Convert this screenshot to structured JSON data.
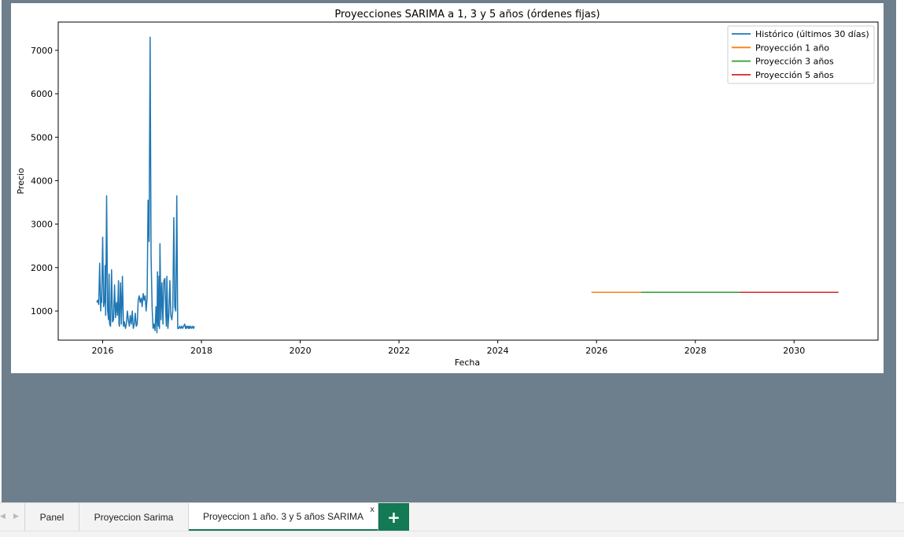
{
  "workbook": {
    "sheet_tabs": [
      {
        "label": "Panel",
        "active": false
      },
      {
        "label": "Proyeccion Sarima",
        "active": false
      },
      {
        "label": "Proyeccion 1 año. 3 y 5 años SARIMA",
        "active": true
      }
    ],
    "close_glyph": "x",
    "add_glyph": "+",
    "nav_left_icon": "chevron-left-icon",
    "nav_right_icon": "chevron-right-icon",
    "accent_color": "#137a55",
    "canvas_color": "#6d7e8c"
  },
  "chart_data": {
    "type": "line",
    "title": "Proyecciones SARIMA a 1, 3 y 5 años (órdenes fijas)",
    "xlabel": "Fecha",
    "ylabel": "Precio",
    "xlim": [
      2015.1,
      2031.7
    ],
    "ylim": [
      330,
      7650
    ],
    "x_ticks": [
      2016,
      2018,
      2020,
      2022,
      2024,
      2026,
      2028,
      2030
    ],
    "y_ticks": [
      1000,
      2000,
      3000,
      4000,
      5000,
      6000,
      7000
    ],
    "legend_position": "top-right",
    "grid": false,
    "series": [
      {
        "name": "Histórico (últimos 30 días)",
        "color": "#1f77b4",
        "x": [
          2015.88,
          2015.9,
          2015.92,
          2015.94,
          2015.96,
          2015.97,
          2015.98,
          2016.0,
          2016.02,
          2016.04,
          2016.05,
          2016.06,
          2016.08,
          2016.1,
          2016.12,
          2016.13,
          2016.14,
          2016.16,
          2016.18,
          2016.2,
          2016.22,
          2016.24,
          2016.26,
          2016.28,
          2016.3,
          2016.32,
          2016.33,
          2016.34,
          2016.36,
          2016.38,
          2016.4,
          2016.42,
          2016.44,
          2016.46,
          2016.48,
          2016.5,
          2016.52,
          2016.54,
          2016.56,
          2016.58,
          2016.6,
          2016.62,
          2016.64,
          2016.66,
          2016.68,
          2016.7,
          2016.72,
          2016.74,
          2016.76,
          2016.78,
          2016.8,
          2016.82,
          2016.84,
          2016.86,
          2016.88,
          2016.9,
          2016.92,
          2016.94,
          2016.96,
          2016.98,
          2017.0,
          2017.02,
          2017.04,
          2017.06,
          2017.08,
          2017.1,
          2017.11,
          2017.12,
          2017.13,
          2017.14,
          2017.15,
          2017.16,
          2017.18,
          2017.2,
          2017.22,
          2017.24,
          2017.26,
          2017.28,
          2017.29,
          2017.3,
          2017.32,
          2017.34,
          2017.36,
          2017.38,
          2017.4,
          2017.42,
          2017.44,
          2017.46,
          2017.48,
          2017.5,
          2017.52,
          2017.54,
          2017.56,
          2017.58,
          2017.6,
          2017.62,
          2017.64,
          2017.66,
          2017.68,
          2017.69,
          2017.7,
          2017.72,
          2017.74,
          2017.75,
          2017.76,
          2017.78,
          2017.8,
          2017.82,
          2017.84,
          2017.86
        ],
        "y": [
          1200,
          1250,
          1150,
          2100,
          1000,
          1300,
          1200,
          2700,
          1100,
          1250,
          2050,
          900,
          3650,
          1000,
          800,
          1850,
          700,
          650,
          1950,
          750,
          800,
          1600,
          850,
          1200,
          900,
          1700,
          700,
          650,
          1650,
          700,
          1800,
          650,
          750,
          600,
          700,
          1000,
          800,
          650,
          900,
          700,
          1000,
          600,
          700,
          950,
          650,
          700,
          1250,
          1350,
          1200,
          1300,
          1100,
          1400,
          1250,
          1350,
          1000,
          1300,
          3550,
          2600,
          7300,
          2300,
          1100,
          600,
          700,
          550,
          1100,
          500,
          1900,
          800,
          650,
          1800,
          600,
          2550,
          800,
          1650,
          700,
          1700,
          1750,
          900,
          650,
          1800,
          600,
          900,
          1700,
          900,
          800,
          1000,
          3150,
          1100,
          1000,
          3650,
          600,
          600,
          650,
          600,
          650,
          600,
          650,
          700,
          600,
          650,
          600,
          650,
          600,
          650,
          600,
          650,
          600,
          650,
          600,
          650
        ],
        "note": ""
      },
      {
        "name": "Proyección 1 año",
        "color": "#ff7f0e",
        "x": [
          2025.9,
          2026.9
        ],
        "y": [
          1430,
          1430
        ]
      },
      {
        "name": "Proyección 3 años",
        "color": "#2ca02c",
        "x": [
          2025.9,
          2028.9
        ],
        "y": [
          1430,
          1430
        ]
      },
      {
        "name": "Proyección 5 años",
        "color": "#d62728",
        "x": [
          2025.9,
          2030.9
        ],
        "y": [
          1430,
          1430
        ]
      }
    ]
  }
}
